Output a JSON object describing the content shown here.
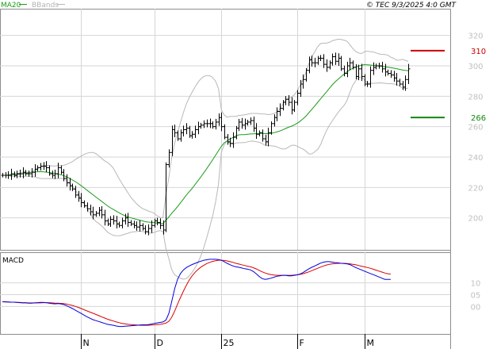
{
  "legend": {
    "ma_label": "MA20",
    "bb_label": "BBands",
    "copyright": "© TEC 9/3/2025 4:0 GMT"
  },
  "colors": {
    "ma": "#1a9b1a",
    "bands": "#b8b8b8",
    "bars": "#000000",
    "macd": "#0000dd",
    "signal": "#dd0000",
    "resistance": "#cc0000",
    "support": "#118811",
    "grid": "#d6d6d6"
  },
  "chart_data": [
    {
      "type": "ohlc",
      "panel": "price",
      "x_tick_labels": [
        "N",
        "D",
        "25",
        "F",
        "M"
      ],
      "x_tick_bars": [
        27,
        52,
        75,
        101,
        124
      ],
      "y_ticks": [
        200,
        220,
        240,
        260,
        280,
        300,
        320
      ],
      "y_tick_labels": [
        "200",
        "220",
        "240",
        "260",
        "280",
        "300",
        "320"
      ],
      "ylim": [
        180,
        336
      ],
      "grid": true,
      "levels": [
        {
          "value": 310,
          "label": "310",
          "kind": "resistance"
        },
        {
          "value": 266,
          "label": "266",
          "kind": "support"
        }
      ],
      "closes": [
        228,
        228,
        228,
        229,
        228,
        229,
        229,
        230,
        229,
        229,
        230,
        232,
        233,
        234,
        234,
        233,
        229,
        228,
        229,
        233,
        230,
        226,
        223,
        221,
        219,
        215,
        213,
        210,
        208,
        206,
        204,
        202,
        203,
        205,
        202,
        198,
        196,
        199,
        198,
        196,
        195,
        198,
        200,
        197,
        196,
        195,
        194,
        195,
        193,
        191,
        193,
        195,
        198,
        197,
        195,
        192,
        235,
        243,
        258,
        256,
        252,
        256,
        258,
        259,
        254,
        255,
        258,
        260,
        261,
        262,
        262,
        262,
        260,
        263,
        266,
        260,
        253,
        250,
        249,
        253,
        259,
        263,
        261,
        262,
        263,
        264,
        259,
        255,
        256,
        252,
        250,
        256,
        262,
        266,
        270,
        272,
        276,
        278,
        276,
        271,
        276,
        282,
        288,
        291,
        297,
        304,
        302,
        302,
        305,
        305,
        301,
        299,
        302,
        306,
        303,
        305,
        298,
        295,
        300,
        302,
        299,
        293,
        298,
        293,
        288,
        288,
        297,
        299,
        300,
        300,
        298,
        296,
        295,
        294,
        292,
        290,
        288,
        286,
        291,
        298
      ],
      "ma20": [
        228,
        228,
        228.1,
        228.2,
        228.3,
        228.5,
        228.8,
        229.1,
        229.4,
        229.7,
        230,
        230.2,
        230.3,
        230.4,
        230.3,
        230.1,
        229.8,
        229.5,
        229.2,
        228.8,
        228.4,
        227.8,
        227,
        226,
        224.9,
        223.8,
        222.5,
        221.1,
        219.7,
        218.2,
        216.7,
        215.2,
        213.7,
        212.3,
        210.9,
        209.4,
        207.9,
        206.6,
        205.5,
        204.4,
        203.3,
        202.3,
        201.4,
        200.6,
        200,
        199.5,
        199,
        198.5,
        198,
        197.5,
        197.2,
        197,
        196.8,
        196.6,
        196.4,
        196.2,
        198.4,
        200.6,
        203,
        205.1,
        207.4,
        209.9,
        212.4,
        215,
        217.2,
        219.4,
        221.9,
        224.5,
        227,
        229.7,
        232.4,
        235.2,
        238.1,
        241.1,
        244.2,
        247.1,
        249.4,
        250.7,
        251.9,
        252.9,
        254,
        254.6,
        254.7,
        254.7,
        255,
        255.2,
        255.3,
        255.4,
        255.5,
        255.5,
        255.4,
        255.4,
        255.6,
        256,
        256.5,
        257.1,
        257.9,
        258.8,
        259.6,
        260.3,
        261.1,
        262.3,
        263.6,
        265.2,
        267,
        269.2,
        271.4,
        273.6,
        276,
        278.3,
        280.6,
        282.9,
        285.2,
        287.5,
        289.5,
        291.2,
        292.9,
        294.5,
        296,
        297.4,
        298.4,
        299.2,
        299.9,
        300.4,
        300.8,
        300.7,
        300.5,
        300.3,
        300.1,
        299.9,
        299.7,
        299.4,
        299.1,
        298.8,
        298.5,
        298.1,
        297.7,
        297.3,
        297,
        296.8
      ]
    },
    {
      "type": "line",
      "panel": "macd",
      "title": "MACD",
      "y_ticks": [
        0,
        0.05,
        0.1
      ],
      "y_tick_labels": [
        "00",
        "05",
        "10"
      ],
      "ylim": [
        -0.11,
        0.22
      ],
      "series": [
        {
          "values": [
            0.02,
            0.02,
            0.019,
            0.018,
            0.018,
            0.017,
            0.016,
            0.015,
            0.015,
            0.014,
            0.014,
            0.015,
            0.016,
            0.017,
            0.017,
            0.016,
            0.014,
            0.012,
            0.011,
            0.012,
            0.011,
            0.008,
            0.003,
            -0.003,
            -0.009,
            -0.016,
            -0.023,
            -0.03,
            -0.037,
            -0.044,
            -0.05,
            -0.056,
            -0.06,
            -0.064,
            -0.068,
            -0.072,
            -0.076,
            -0.078,
            -0.08,
            -0.083,
            -0.085,
            -0.085,
            -0.084,
            -0.083,
            -0.082,
            -0.081,
            -0.08,
            -0.079,
            -0.078,
            -0.078,
            -0.077,
            -0.075,
            -0.072,
            -0.07,
            -0.068,
            -0.066,
            -0.058,
            -0.03,
            0.02,
            0.075,
            0.115,
            0.14,
            0.155,
            0.165,
            0.172,
            0.178,
            0.183,
            0.188,
            0.192,
            0.196,
            0.198,
            0.2,
            0.2,
            0.2,
            0.199,
            0.196,
            0.19,
            0.183,
            0.177,
            0.172,
            0.168,
            0.166,
            0.163,
            0.16,
            0.158,
            0.155,
            0.148,
            0.138,
            0.127,
            0.118,
            0.115,
            0.117,
            0.12,
            0.124,
            0.128,
            0.13,
            0.132,
            0.132,
            0.13,
            0.13,
            0.132,
            0.134,
            0.138,
            0.144,
            0.152,
            0.16,
            0.166,
            0.172,
            0.178,
            0.184,
            0.188,
            0.19,
            0.19,
            0.188,
            0.186,
            0.185,
            0.183,
            0.182,
            0.181,
            0.178,
            0.172,
            0.165,
            0.16,
            0.155,
            0.15,
            0.145,
            0.14,
            0.135,
            0.13,
            0.125,
            0.12,
            0.115,
            0.115,
            0.115
          ]
        },
        {
          "values": [
            0.02,
            0.019,
            0.019,
            0.018,
            0.018,
            0.017,
            0.017,
            0.016,
            0.016,
            0.015,
            0.015,
            0.015,
            0.015,
            0.015,
            0.016,
            0.016,
            0.016,
            0.015,
            0.014,
            0.014,
            0.013,
            0.012,
            0.01,
            0.007,
            0.004,
            0,
            -0.004,
            -0.009,
            -0.014,
            -0.019,
            -0.024,
            -0.029,
            -0.034,
            -0.039,
            -0.044,
            -0.049,
            -0.054,
            -0.058,
            -0.062,
            -0.066,
            -0.069,
            -0.072,
            -0.074,
            -0.076,
            -0.077,
            -0.078,
            -0.079,
            -0.08,
            -0.08,
            -0.08,
            -0.08,
            -0.079,
            -0.078,
            -0.077,
            -0.076,
            -0.074,
            -0.071,
            -0.063,
            -0.046,
            -0.02,
            0.01,
            0.038,
            0.065,
            0.09,
            0.112,
            0.13,
            0.145,
            0.157,
            0.167,
            0.175,
            0.182,
            0.187,
            0.191,
            0.194,
            0.196,
            0.196,
            0.195,
            0.193,
            0.19,
            0.187,
            0.183,
            0.18,
            0.177,
            0.174,
            0.171,
            0.168,
            0.164,
            0.159,
            0.153,
            0.147,
            0.142,
            0.138,
            0.135,
            0.133,
            0.132,
            0.132,
            0.132,
            0.132,
            0.132,
            0.132,
            0.133,
            0.134,
            0.136,
            0.139,
            0.143,
            0.147,
            0.152,
            0.157,
            0.162,
            0.167,
            0.172,
            0.176,
            0.179,
            0.181,
            0.182,
            0.183,
            0.183,
            0.183,
            0.182,
            0.181,
            0.179,
            0.177,
            0.174,
            0.171,
            0.168,
            0.165,
            0.162,
            0.158,
            0.154,
            0.15,
            0.146,
            0.142,
            0.139,
            0.137
          ]
        }
      ]
    }
  ]
}
